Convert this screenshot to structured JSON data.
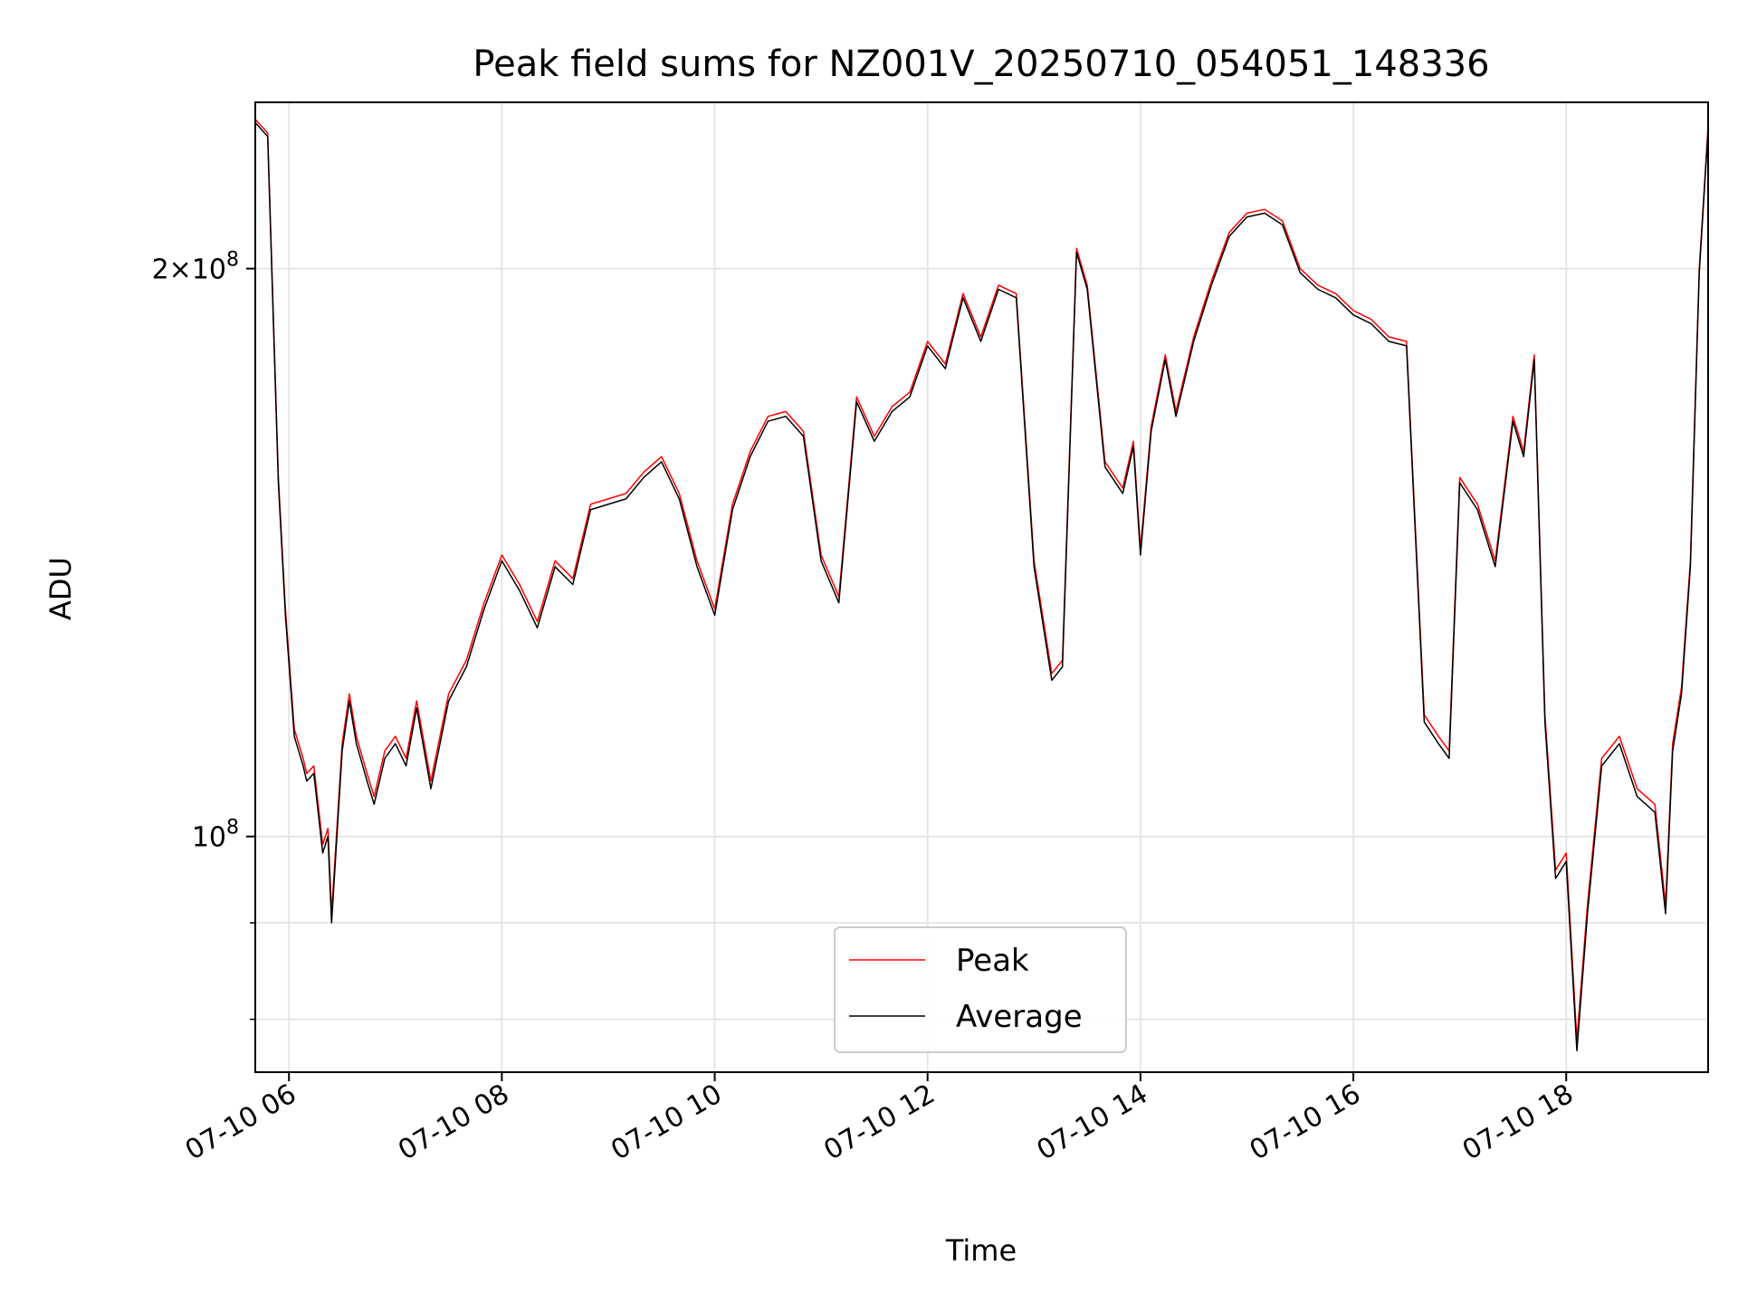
{
  "chart_data": {
    "type": "line",
    "title": "Peak field sums for NZ001V_20250710_054051_148336",
    "xlabel": "Time",
    "ylabel": "ADU",
    "y_scale": "log",
    "x_range": [
      "07-10 05:41",
      "07-10 19:20"
    ],
    "ylim": [
      75000000,
      245000000
    ],
    "grid": true,
    "legend_position": "lower-center",
    "x_ticks": [
      {
        "hour": 6,
        "label": "07-10 06"
      },
      {
        "hour": 8,
        "label": "07-10 08"
      },
      {
        "hour": 10,
        "label": "07-10 10"
      },
      {
        "hour": 12,
        "label": "07-10 12"
      },
      {
        "hour": 14,
        "label": "07-10 14"
      },
      {
        "hour": 16,
        "label": "07-10 16"
      },
      {
        "hour": 18,
        "label": "07-10 18"
      }
    ],
    "y_major_ticks": [
      {
        "value": 100000000,
        "base": "10",
        "exp": "8",
        "prefix": ""
      },
      {
        "value": 200000000,
        "base": "10",
        "exp": "8",
        "prefix": "2×"
      }
    ],
    "y_minor_ticks": [
      80000000,
      90000000
    ],
    "series": [
      {
        "name": "Peak",
        "color": "#ff0000",
        "x": [
          "07-10 05:41",
          "07-10 05:48",
          "07-10 05:54",
          "07-10 05:58",
          "07-10 06:03",
          "07-10 06:08",
          "07-10 06:10",
          "07-10 06:14",
          "07-10 06:19",
          "07-10 06:22",
          "07-10 06:24",
          "07-10 06:30",
          "07-10 06:34",
          "07-10 06:38",
          "07-10 06:44",
          "07-10 06:48",
          "07-10 06:54",
          "07-10 07:00",
          "07-10 07:06",
          "07-10 07:12",
          "07-10 07:20",
          "07-10 07:30",
          "07-10 07:40",
          "07-10 07:50",
          "07-10 08:00",
          "07-10 08:10",
          "07-10 08:20",
          "07-10 08:30",
          "07-10 08:40",
          "07-10 08:50",
          "07-10 09:00",
          "07-10 09:10",
          "07-10 09:20",
          "07-10 09:30",
          "07-10 09:40",
          "07-10 09:50",
          "07-10 10:00",
          "07-10 10:10",
          "07-10 10:20",
          "07-10 10:30",
          "07-10 10:40",
          "07-10 10:50",
          "07-10 11:00",
          "07-10 11:10",
          "07-10 11:20",
          "07-10 11:30",
          "07-10 11:40",
          "07-10 11:50",
          "07-10 12:00",
          "07-10 12:10",
          "07-10 12:20",
          "07-10 12:30",
          "07-10 12:40",
          "07-10 12:50",
          "07-10 13:00",
          "07-10 13:10",
          "07-10 13:16",
          "07-10 13:24",
          "07-10 13:30",
          "07-10 13:40",
          "07-10 13:50",
          "07-10 13:56",
          "07-10 14:00",
          "07-10 14:06",
          "07-10 14:14",
          "07-10 14:20",
          "07-10 14:30",
          "07-10 14:40",
          "07-10 14:50",
          "07-10 15:00",
          "07-10 15:10",
          "07-10 15:20",
          "07-10 15:30",
          "07-10 15:40",
          "07-10 15:50",
          "07-10 16:00",
          "07-10 16:10",
          "07-10 16:20",
          "07-10 16:30",
          "07-10 16:40",
          "07-10 16:48",
          "07-10 16:54",
          "07-10 17:00",
          "07-10 17:10",
          "07-10 17:20",
          "07-10 17:30",
          "07-10 17:36",
          "07-10 17:42",
          "07-10 17:48",
          "07-10 17:54",
          "07-10 18:00",
          "07-10 18:06",
          "07-10 18:12",
          "07-10 18:20",
          "07-10 18:30",
          "07-10 18:40",
          "07-10 18:50",
          "07-10 18:56",
          "07-10 19:00",
          "07-10 19:05",
          "07-10 19:10",
          "07-10 19:15",
          "07-10 19:20"
        ],
        "y": [
          240000000,
          236000000,
          155000000,
          132000000,
          114000000,
          110000000,
          108000000,
          109000000,
          99000000,
          101000000,
          91000000,
          112000000,
          119000000,
          113000000,
          108000000,
          105000000,
          111000000,
          113000000,
          110000000,
          118000000,
          107000000,
          119000000,
          124000000,
          133000000,
          141000000,
          136000000,
          130000000,
          140000000,
          137000000,
          150000000,
          151000000,
          152000000,
          156000000,
          159000000,
          152000000,
          140000000,
          132000000,
          150000000,
          160000000,
          167000000,
          168000000,
          164000000,
          141000000,
          134000000,
          171000000,
          163000000,
          169000000,
          172000000,
          183000000,
          178000000,
          194000000,
          184000000,
          196000000,
          194000000,
          140000000,
          122000000,
          124000000,
          205000000,
          196000000,
          158000000,
          153000000,
          162000000,
          142000000,
          165000000,
          180000000,
          168000000,
          184000000,
          197000000,
          209000000,
          214000000,
          215000000,
          212000000,
          200000000,
          196000000,
          194000000,
          190000000,
          188000000,
          184000000,
          183000000,
          116000000,
          113000000,
          111000000,
          155000000,
          150000000,
          140000000,
          167000000,
          160000000,
          180000000,
          116000000,
          96000000,
          98000000,
          78000000,
          92000000,
          110000000,
          113000000,
          106000000,
          104000000,
          92000000,
          112000000,
          120000000,
          140000000,
          200000000,
          238000000
        ]
      },
      {
        "name": "Average",
        "color": "#000000",
        "x": [
          "07-10 05:41",
          "07-10 05:48",
          "07-10 05:54",
          "07-10 05:58",
          "07-10 06:03",
          "07-10 06:08",
          "07-10 06:10",
          "07-10 06:14",
          "07-10 06:19",
          "07-10 06:22",
          "07-10 06:24",
          "07-10 06:30",
          "07-10 06:34",
          "07-10 06:38",
          "07-10 06:44",
          "07-10 06:48",
          "07-10 06:54",
          "07-10 07:00",
          "07-10 07:06",
          "07-10 07:12",
          "07-10 07:20",
          "07-10 07:30",
          "07-10 07:40",
          "07-10 07:50",
          "07-10 08:00",
          "07-10 08:10",
          "07-10 08:20",
          "07-10 08:30",
          "07-10 08:40",
          "07-10 08:50",
          "07-10 09:00",
          "07-10 09:10",
          "07-10 09:20",
          "07-10 09:30",
          "07-10 09:40",
          "07-10 09:50",
          "07-10 10:00",
          "07-10 10:10",
          "07-10 10:20",
          "07-10 10:30",
          "07-10 10:40",
          "07-10 10:50",
          "07-10 11:00",
          "07-10 11:10",
          "07-10 11:20",
          "07-10 11:30",
          "07-10 11:40",
          "07-10 11:50",
          "07-10 12:00",
          "07-10 12:10",
          "07-10 12:20",
          "07-10 12:30",
          "07-10 12:40",
          "07-10 12:50",
          "07-10 13:00",
          "07-10 13:10",
          "07-10 13:16",
          "07-10 13:24",
          "07-10 13:30",
          "07-10 13:40",
          "07-10 13:50",
          "07-10 13:56",
          "07-10 14:00",
          "07-10 14:06",
          "07-10 14:14",
          "07-10 14:20",
          "07-10 14:30",
          "07-10 14:40",
          "07-10 14:50",
          "07-10 15:00",
          "07-10 15:10",
          "07-10 15:20",
          "07-10 15:30",
          "07-10 15:40",
          "07-10 15:50",
          "07-10 16:00",
          "07-10 16:10",
          "07-10 16:20",
          "07-10 16:30",
          "07-10 16:40",
          "07-10 16:48",
          "07-10 16:54",
          "07-10 17:00",
          "07-10 17:10",
          "07-10 17:20",
          "07-10 17:30",
          "07-10 17:36",
          "07-10 17:42",
          "07-10 17:48",
          "07-10 17:54",
          "07-10 18:00",
          "07-10 18:06",
          "07-10 18:12",
          "07-10 18:20",
          "07-10 18:30",
          "07-10 18:40",
          "07-10 18:50",
          "07-10 18:56",
          "07-10 19:00",
          "07-10 19:05",
          "07-10 19:10",
          "07-10 19:15",
          "07-10 19:20"
        ],
        "y": [
          239000000,
          235000000,
          154000000,
          131000000,
          113000000,
          109000000,
          107000000,
          108000000,
          98000000,
          100000000,
          90000000,
          111000000,
          118000000,
          112000000,
          107000000,
          104000000,
          110000000,
          112000000,
          109000000,
          117000000,
          106000000,
          118000000,
          123000000,
          132000000,
          140000000,
          135000000,
          129000000,
          139000000,
          136000000,
          149000000,
          150000000,
          151000000,
          155000000,
          158000000,
          151000000,
          139000000,
          131000000,
          149000000,
          159000000,
          166000000,
          167000000,
          163000000,
          140000000,
          133000000,
          170000000,
          162000000,
          168000000,
          171000000,
          182000000,
          177000000,
          193000000,
          183000000,
          195000000,
          193000000,
          139000000,
          121000000,
          123000000,
          204000000,
          195000000,
          157000000,
          152000000,
          161000000,
          141000000,
          164000000,
          179000000,
          167000000,
          183000000,
          196000000,
          208000000,
          213000000,
          214000000,
          211000000,
          199000000,
          195000000,
          193000000,
          189000000,
          187000000,
          183000000,
          182000000,
          115000000,
          112000000,
          110000000,
          154000000,
          149000000,
          139000000,
          166000000,
          159000000,
          179000000,
          115000000,
          95000000,
          97000000,
          77000000,
          91000000,
          109000000,
          112000000,
          105000000,
          103000000,
          91000000,
          111000000,
          119000000,
          139000000,
          199000000,
          237000000
        ]
      }
    ]
  }
}
